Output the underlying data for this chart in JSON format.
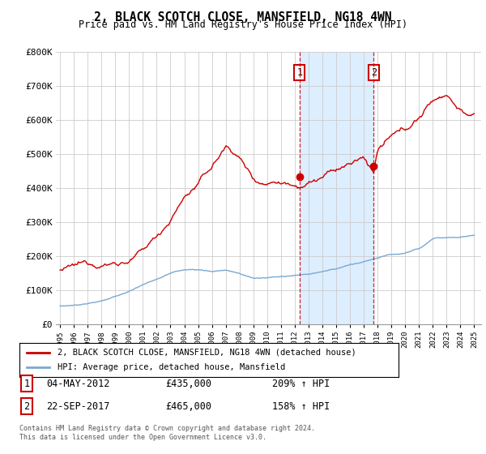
{
  "title": "2, BLACK SCOTCH CLOSE, MANSFIELD, NG18 4WN",
  "subtitle": "Price paid vs. HM Land Registry's House Price Index (HPI)",
  "legend_line1": "2, BLACK SCOTCH CLOSE, MANSFIELD, NG18 4WN (detached house)",
  "legend_line2": "HPI: Average price, detached house, Mansfield",
  "annotation1_label": "1",
  "annotation1_date": "04-MAY-2012",
  "annotation1_price": "£435,000",
  "annotation1_hpi": "209% ↑ HPI",
  "annotation2_label": "2",
  "annotation2_date": "22-SEP-2017",
  "annotation2_price": "£465,000",
  "annotation2_hpi": "158% ↑ HPI",
  "footnote1": "Contains HM Land Registry data © Crown copyright and database right 2024.",
  "footnote2": "This data is licensed under the Open Government Licence v3.0.",
  "sale1_x": 2012.35,
  "sale1_y": 435000,
  "sale2_x": 2017.72,
  "sale2_y": 465000,
  "red_color": "#cc0000",
  "blue_color": "#7aa8d2",
  "shade_color": "#ddeeff",
  "ylim": [
    0,
    800000
  ],
  "xlim": [
    1994.7,
    2025.5
  ],
  "background_color": "#ffffff",
  "grid_color": "#cccccc",
  "red_knots_x": [
    1995,
    1996,
    1997,
    1998,
    1999,
    2000,
    2001,
    2002,
    2003,
    2004,
    2005,
    2006,
    2007,
    2007.5,
    2008,
    2009,
    2010,
    2010.5,
    2011,
    2011.5,
    2012.35,
    2013,
    2014,
    2015,
    2016,
    2017,
    2017.72,
    2018,
    2019,
    2020,
    2021,
    2022,
    2023,
    2023.5,
    2024,
    2025
  ],
  "red_knots_y": [
    160000,
    163000,
    168000,
    175000,
    182000,
    192000,
    215000,
    255000,
    310000,
    375000,
    415000,
    460000,
    520000,
    510000,
    490000,
    430000,
    420000,
    435000,
    430000,
    435000,
    435000,
    445000,
    460000,
    475000,
    490000,
    505000,
    465000,
    530000,
    560000,
    570000,
    610000,
    660000,
    685000,
    660000,
    640000,
    620000
  ],
  "hpi_knots_x": [
    1995,
    1996,
    1997,
    1998,
    1999,
    2000,
    2001,
    2002,
    2003,
    2004,
    2005,
    2006,
    2007,
    2008,
    2009,
    2010,
    2011,
    2012,
    2013,
    2014,
    2015,
    2016,
    2017,
    2018,
    2019,
    2020,
    2021,
    2022,
    2023,
    2024,
    2025
  ],
  "hpi_knots_y": [
    55000,
    58000,
    63000,
    72000,
    82000,
    98000,
    118000,
    135000,
    152000,
    163000,
    163000,
    158000,
    163000,
    152000,
    138000,
    140000,
    143000,
    143000,
    148000,
    155000,
    162000,
    172000,
    183000,
    195000,
    205000,
    207000,
    220000,
    250000,
    255000,
    258000,
    263000
  ]
}
